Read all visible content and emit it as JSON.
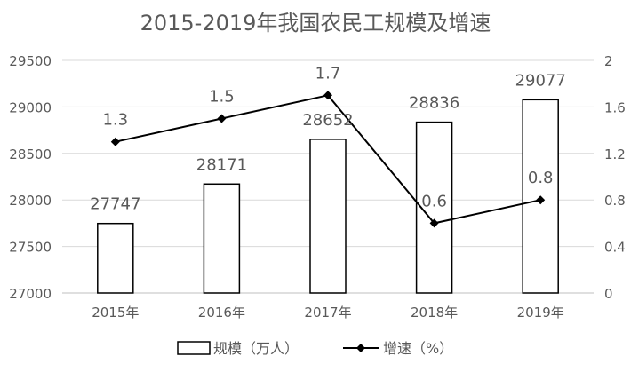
{
  "chart_data": {
    "type": "bar+line",
    "title": "2015-2019年我国农民工规模及增速",
    "categories": [
      "2015年",
      "2016年",
      "2017年",
      "2018年",
      "2019年"
    ],
    "y_left": {
      "min": 27000,
      "max": 29500,
      "step": 500,
      "ticks": [
        "27000",
        "27500",
        "28000",
        "28500",
        "29000",
        "29500"
      ]
    },
    "y_right": {
      "min": 0,
      "max": 2,
      "step": 0.4,
      "ticks": [
        "0",
        "0.4",
        "0.8",
        "1.2",
        "1.6",
        "2"
      ]
    },
    "grid": true,
    "legend_position": "bottom",
    "series": [
      {
        "name": "规模（万人）",
        "type": "bar",
        "axis": "left",
        "values": [
          27747,
          28171,
          28652,
          28836,
          29077
        ],
        "labels": [
          "27747",
          "28171",
          "28652",
          "28836",
          "29077"
        ]
      },
      {
        "name": "增速（%）",
        "type": "line",
        "axis": "right",
        "values": [
          1.3,
          1.5,
          1.7,
          0.6,
          0.8
        ],
        "labels": [
          "1.3",
          "1.5",
          "1.7",
          "0.6",
          "0.8"
        ]
      }
    ],
    "colors": {
      "bar_fill": "#ffffff",
      "bar_stroke": "#000000",
      "line": "#000000",
      "grid": "#d9d9d9",
      "text": "#595959",
      "axis": "#bfbfbf"
    }
  }
}
